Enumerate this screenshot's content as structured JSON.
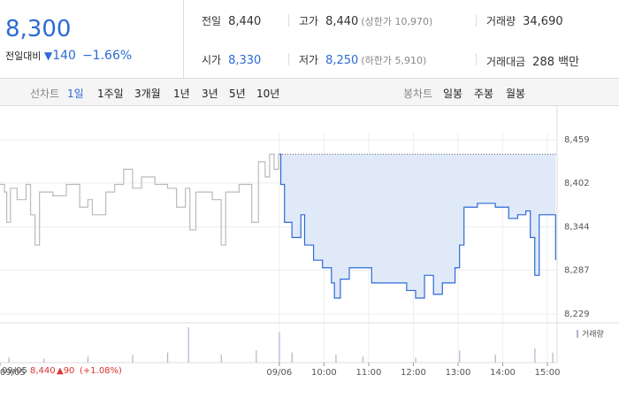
{
  "header": {
    "price": "8,300",
    "change_label": "전일대비",
    "change": "140",
    "change_pct": "−1.66%",
    "stats": [
      {
        "label": "전일",
        "value": "8,440"
      },
      {
        "label": "고가",
        "value": "8,440",
        "note": "(상한가 10,970)"
      },
      {
        "label": "거래량",
        "value": "34,690"
      },
      {
        "label": "시가",
        "value": "8,330"
      },
      {
        "label": "저가",
        "value": "8,250",
        "note": "(하한가 5,910)"
      },
      {
        "label": "거래대금",
        "value": "288 백만"
      }
    ]
  },
  "tabs": {
    "line_label": "선차트",
    "line_items": [
      "1일",
      "1주일",
      "3개월",
      "1년",
      "3년",
      "5년",
      "10년"
    ],
    "candle_label": "봉차트",
    "candle_items": [
      "일봉",
      "주봉",
      "월봉"
    ]
  },
  "footer": {
    "date": "09/05",
    "price": "8,440",
    "change": "▲90",
    "change_pct": "(+1.08%)"
  },
  "chart_data": {
    "type": "line",
    "xlim": [
      15,
      763
    ],
    "ylim": [
      8229,
      8459
    ],
    "xticks": [
      {
        "value": 15,
        "label": "09/05"
      },
      {
        "value": 390,
        "label": "09/06"
      },
      {
        "value": 450,
        "label": "10:00"
      },
      {
        "value": 510,
        "label": "11:00"
      },
      {
        "value": 570,
        "label": "12:00"
      },
      {
        "value": 630,
        "label": "13:00"
      },
      {
        "value": 690,
        "label": "14:00"
      },
      {
        "value": 750,
        "label": "15:00"
      }
    ],
    "yticks": [
      {
        "value": 8229,
        "label": "8,229"
      },
      {
        "value": 8287,
        "label": "8,287"
      },
      {
        "value": 8344,
        "label": "8,344"
      },
      {
        "value": 8402,
        "label": "8,402"
      },
      {
        "value": 8459,
        "label": "8,459"
      }
    ],
    "grid": true,
    "prev_close": 8440,
    "area_color": "#dfe9f8",
    "series": [
      {
        "color": "#bbbbbb",
        "x": [
          15,
          21,
          24,
          29,
          38,
          50,
          56,
          62,
          68,
          86,
          104,
          122,
          133,
          139,
          157,
          169,
          181,
          193,
          205,
          223,
          240,
          252,
          264,
          270,
          278,
          300,
          312,
          318,
          336,
          353,
          362,
          371,
          377,
          383,
          389
        ],
        "values": [
          8400,
          8390,
          8350,
          8395,
          8380,
          8400,
          8360,
          8320,
          8390,
          8385,
          8400,
          8370,
          8380,
          8360,
          8390,
          8400,
          8420,
          8395,
          8410,
          8400,
          8395,
          8370,
          8395,
          8340,
          8390,
          8380,
          8320,
          8390,
          8400,
          8350,
          8430,
          8410,
          8440,
          8420,
          8440
        ]
      },
      {
        "color": "#2d6ad6",
        "x": [
          390,
          392,
          397,
          407,
          419,
          424,
          436,
          448,
          460,
          464,
          472,
          484,
          502,
          514,
          537,
          561,
          573,
          585,
          597,
          609,
          626,
          632,
          638,
          656,
          680,
          698,
          710,
          721,
          727,
          733,
          739,
          751,
          761
        ],
        "values": [
          8440,
          8400,
          8350,
          8330,
          8360,
          8320,
          8300,
          8290,
          8270,
          8250,
          8275,
          8290,
          8290,
          8270,
          8270,
          8260,
          8250,
          8280,
          8255,
          8270,
          8290,
          8320,
          8370,
          8375,
          8370,
          8355,
          8360,
          8365,
          8330,
          8280,
          8360,
          8360,
          8300
        ]
      }
    ],
    "volume": {
      "name": "거래량",
      "color": "#b7b0cc",
      "x": [
        27,
        74,
        133,
        193,
        240,
        268,
        312,
        359,
        390,
        407,
        466,
        502,
        573,
        632,
        680,
        733,
        757
      ],
      "values": [
        5,
        4,
        6,
        8,
        10,
        35,
        8,
        12,
        30,
        10,
        8,
        6,
        5,
        12,
        8,
        14,
        10
      ]
    }
  }
}
